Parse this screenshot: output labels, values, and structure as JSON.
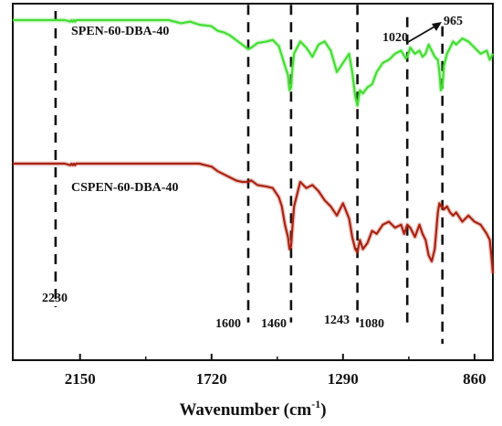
{
  "chart_data": {
    "type": "line",
    "xlabel": "Wavenumber (cm",
    "xlabel_sup": "-1",
    "xlabel_end": ")",
    "ylabel": "",
    "xlim": [
      2370,
      800
    ],
    "xaxis_reversed": true,
    "xticks": [
      2150,
      1720,
      1290,
      860
    ],
    "yticks_shown": false,
    "colors": {
      "green": "#44dd33",
      "red": "#aa2211",
      "dash": "#111111"
    },
    "series": [
      {
        "name": "SPEN-60-DBA-40",
        "color": "#44dd33",
        "x": [
          2370,
          2200,
          2182,
          2178,
          2174,
          2170,
          2166,
          2162,
          2158,
          2100,
          2000,
          1900,
          1860,
          1820,
          1790,
          1760,
          1720,
          1700,
          1680,
          1660,
          1640,
          1620,
          1600,
          1590,
          1570,
          1540,
          1520,
          1500,
          1480,
          1470,
          1465,
          1460,
          1455,
          1450,
          1430,
          1410,
          1390,
          1370,
          1350,
          1330,
          1310,
          1290,
          1270,
          1260,
          1250,
          1243,
          1235,
          1225,
          1210,
          1195,
          1180,
          1160,
          1140,
          1120,
          1100,
          1085,
          1080,
          1070,
          1055,
          1040,
          1030,
          1020,
          1010,
          1000,
          990,
          980,
          975,
          970,
          965,
          960,
          950,
          940,
          930,
          920,
          900,
          880,
          860,
          840,
          820,
          810,
          800
        ],
        "values": [
          0.97,
          0.97,
          0.965,
          0.97,
          0.965,
          0.97,
          0.965,
          0.97,
          0.97,
          0.97,
          0.97,
          0.97,
          0.97,
          0.96,
          0.965,
          0.955,
          0.95,
          0.935,
          0.93,
          0.92,
          0.905,
          0.89,
          0.875,
          0.88,
          0.895,
          0.9,
          0.905,
          0.885,
          0.82,
          0.79,
          0.74,
          0.75,
          0.82,
          0.86,
          0.9,
          0.88,
          0.85,
          0.89,
          0.9,
          0.87,
          0.8,
          0.83,
          0.86,
          0.8,
          0.72,
          0.69,
          0.74,
          0.73,
          0.75,
          0.76,
          0.8,
          0.83,
          0.84,
          0.86,
          0.87,
          0.845,
          0.85,
          0.88,
          0.86,
          0.87,
          0.85,
          0.86,
          0.89,
          0.87,
          0.85,
          0.84,
          0.8,
          0.74,
          0.75,
          0.82,
          0.86,
          0.88,
          0.9,
          0.89,
          0.91,
          0.9,
          0.88,
          0.86,
          0.87,
          0.84,
          0.86
        ]
      },
      {
        "name": "CSPEN-60-DBA-40",
        "color": "#aa2211",
        "x": [
          2370,
          2200,
          2182,
          2178,
          2174,
          2170,
          2166,
          2162,
          2158,
          2100,
          2000,
          1900,
          1820,
          1790,
          1760,
          1740,
          1720,
          1700,
          1680,
          1660,
          1640,
          1620,
          1600,
          1590,
          1570,
          1540,
          1520,
          1500,
          1490,
          1480,
          1470,
          1465,
          1460,
          1455,
          1450,
          1430,
          1410,
          1390,
          1370,
          1350,
          1330,
          1310,
          1290,
          1270,
          1260,
          1250,
          1243,
          1235,
          1225,
          1210,
          1195,
          1180,
          1160,
          1140,
          1120,
          1100,
          1090,
          1080,
          1070,
          1055,
          1040,
          1030,
          1020,
          1010,
          1000,
          990,
          980,
          975,
          970,
          965,
          960,
          950,
          940,
          930,
          920,
          900,
          880,
          860,
          840,
          820,
          810,
          805,
          800
        ],
        "values": [
          0.5,
          0.5,
          0.495,
          0.5,
          0.495,
          0.5,
          0.495,
          0.5,
          0.5,
          0.5,
          0.5,
          0.5,
          0.5,
          0.5,
          0.5,
          0.495,
          0.49,
          0.475,
          0.465,
          0.455,
          0.445,
          0.44,
          0.44,
          0.445,
          0.43,
          0.425,
          0.42,
          0.39,
          0.36,
          0.3,
          0.26,
          0.22,
          0.23,
          0.3,
          0.36,
          0.44,
          0.42,
          0.43,
          0.41,
          0.38,
          0.36,
          0.33,
          0.37,
          0.32,
          0.26,
          0.22,
          0.21,
          0.25,
          0.22,
          0.24,
          0.28,
          0.27,
          0.3,
          0.31,
          0.29,
          0.3,
          0.27,
          0.3,
          0.29,
          0.26,
          0.3,
          0.27,
          0.25,
          0.2,
          0.18,
          0.22,
          0.34,
          0.37,
          0.36,
          0.36,
          0.35,
          0.36,
          0.34,
          0.33,
          0.34,
          0.31,
          0.33,
          0.31,
          0.3,
          0.27,
          0.25,
          0.2,
          0.14
        ]
      }
    ],
    "peak_lines": [
      {
        "x": 2230,
        "label": "2230",
        "y_from": 1.0,
        "y_to": 0.03
      },
      {
        "x": 1600,
        "label": "1600",
        "y_from": 1.02,
        "y_to": -0.02
      },
      {
        "x": 1460,
        "label": "1460",
        "y_from": 1.02,
        "y_to": -0.02
      },
      {
        "x": 1243,
        "label": "1243",
        "y_from": 1.02,
        "y_to": -0.02
      },
      {
        "x": 1080,
        "label": "1080",
        "y_from": 0.98,
        "y_to": -0.02
      },
      {
        "x": 965,
        "label": "",
        "y_from": 0.95,
        "y_to": -0.09
      }
    ],
    "annotations": [
      {
        "text": "1020"
      },
      {
        "text": "965"
      }
    ]
  }
}
